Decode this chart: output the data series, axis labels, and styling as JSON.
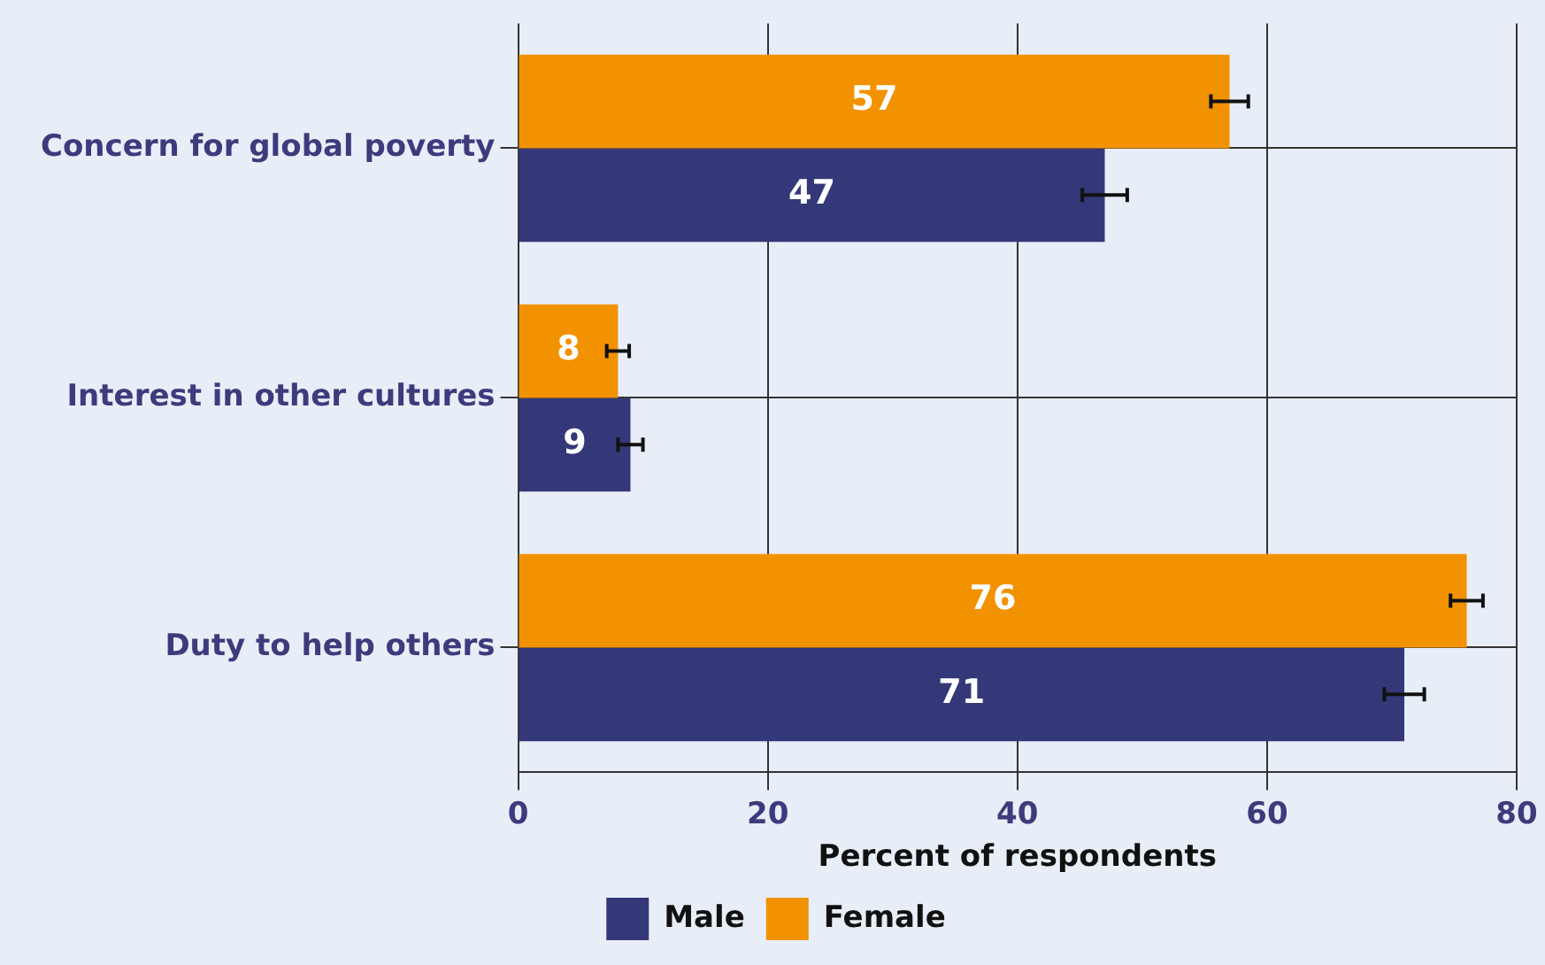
{
  "chart_data": {
    "type": "bar",
    "orientation": "horizontal",
    "xlabel": "Percent of respondents",
    "categories": [
      "Concern for global poverty",
      "Interest in other cultures",
      "Duty to help others"
    ],
    "series": [
      {
        "name": "Female",
        "color": "#f39200",
        "values": [
          57,
          8,
          76
        ],
        "errors": [
          1.5,
          0.9,
          1.3
        ]
      },
      {
        "name": "Male",
        "color": "#343878",
        "values": [
          47,
          9,
          71
        ],
        "errors": [
          1.8,
          1,
          1.6
        ]
      }
    ],
    "xlim": [
      0,
      80
    ],
    "xticks": [
      0,
      20,
      40,
      60,
      80
    ],
    "grid": true,
    "legend": "bottom",
    "data_labels": true
  }
}
